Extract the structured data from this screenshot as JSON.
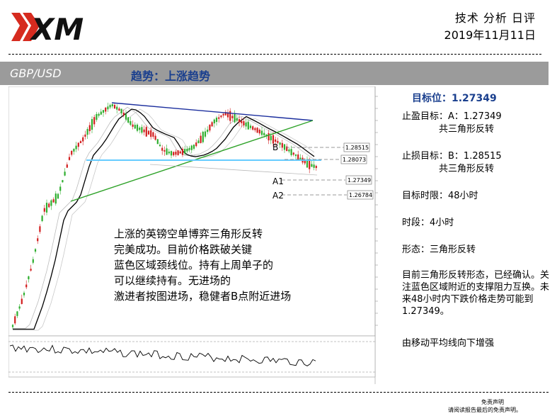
{
  "header": {
    "logo_text": "XM",
    "title": "技术 分析 日评",
    "date": "2019年11月11日"
  },
  "banner": {
    "pair": "GBP/USD",
    "trend": "趋势：上涨趋势"
  },
  "chart": {
    "price_labels": [
      "1.28515",
      "1.28073",
      "1.27349",
      "1.26784"
    ],
    "markers": [
      "B",
      "A1",
      "A2"
    ],
    "commentary": [
      "上涨的英镑空单博弈三角形反转",
      "完美成功。目前价格跌破关键",
      "蓝色区域颈线位。持有上周单子的",
      "可以继续持有。无进场的",
      "激进者按图进场，稳健者B点附近进场"
    ],
    "colors": {
      "resistance": "#1c2f9e",
      "support": "#2fa32a",
      "neckline": "#66ccff",
      "ma": "#000000",
      "up": "#2eae2e",
      "down": "#d21f1f"
    }
  },
  "panel": {
    "target_label": "目标位：1.27349",
    "take_profit": "止盈目标：A：1.27349",
    "take_profit_note": "共三角形反转",
    "stop_loss": "止损目标：B：1.28515",
    "stop_loss_note": "共三角形反转",
    "time_limit": "目标时限：48小时",
    "timeframe": "时段：4小时",
    "pattern": "形态：三角形反转",
    "summary": "目前三角形反转形态，已经确认。关注蓝色区域附近的支撑阻力互换。未来48小时内下跌价格走势可能到1.27349。",
    "ma_note": "由移动平均线向下增强"
  },
  "footer": {
    "line1": "免责声明",
    "line2": "请阅读报告最后的免责声明。"
  }
}
